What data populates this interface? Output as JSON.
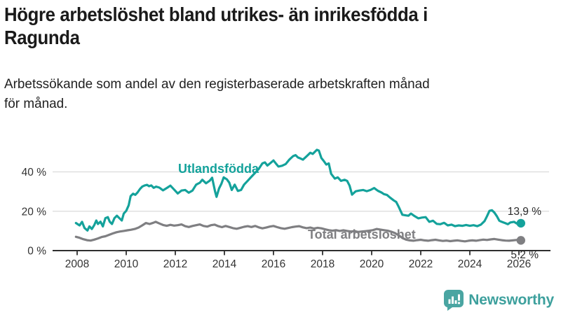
{
  "headline": {
    "lines": [
      "Högre arbetslöshet bland utrikes- än inrikesfödda i",
      "Ragunda"
    ]
  },
  "subtitle": {
    "lines": [
      "Arbetssökande som andel av den registerbaserade arbetskraften månad",
      "för månad."
    ]
  },
  "chart_data": {
    "type": "line",
    "title": "Högre arbetslöshet bland utrikes- än inrikesfödda i Ragunda",
    "subtitle": "Arbetssökande som andel av den registerbaserade arbetskraften månad för månad.",
    "unit": "%",
    "grid": true,
    "x_axis": {
      "tick_years": [
        2008,
        2010,
        2012,
        2014,
        2016,
        2018,
        2020,
        2022,
        2024,
        2026
      ],
      "range": [
        2007.9,
        2026.3
      ]
    },
    "y_axis": {
      "ticks": [
        {
          "value": 0,
          "label": "0 %"
        },
        {
          "value": 20,
          "label": "20 %"
        },
        {
          "value": 40,
          "label": "40 %"
        }
      ],
      "ylim": [
        0,
        52
      ]
    },
    "colors": {
      "axis": "#2f2f2f",
      "grid": "#e0e0e0",
      "tick_text": "#333333"
    },
    "series": [
      {
        "name": "Utlandsfödda",
        "color": "#14a29b",
        "end_label": "13,9 %",
        "end_value": 13.9,
        "points": [
          [
            2007.95,
            14
          ],
          [
            2008.1,
            12.8
          ],
          [
            2008.2,
            14.6
          ],
          [
            2008.3,
            11.5
          ],
          [
            2008.42,
            10.2
          ],
          [
            2008.5,
            12.3
          ],
          [
            2008.6,
            11.0
          ],
          [
            2008.7,
            13.0
          ],
          [
            2008.78,
            15.3
          ],
          [
            2008.85,
            13.5
          ],
          [
            2008.95,
            14.7
          ],
          [
            2009.05,
            12.3
          ],
          [
            2009.15,
            16.5
          ],
          [
            2009.25,
            17.0
          ],
          [
            2009.33,
            14.7
          ],
          [
            2009.42,
            13.5
          ],
          [
            2009.52,
            16.5
          ],
          [
            2009.62,
            17.7
          ],
          [
            2009.72,
            16.5
          ],
          [
            2009.82,
            15.3
          ],
          [
            2009.9,
            18.8
          ],
          [
            2010.0,
            20.2
          ],
          [
            2010.1,
            23.0
          ],
          [
            2010.18,
            27.7
          ],
          [
            2010.28,
            28.9
          ],
          [
            2010.37,
            28.3
          ],
          [
            2010.46,
            29.5
          ],
          [
            2010.56,
            31.3
          ],
          [
            2010.65,
            32.5
          ],
          [
            2010.75,
            33.1
          ],
          [
            2010.85,
            33.4
          ],
          [
            2010.93,
            32.7
          ],
          [
            2011.02,
            33.1
          ],
          [
            2011.12,
            31.9
          ],
          [
            2011.22,
            32.5
          ],
          [
            2011.35,
            32.0
          ],
          [
            2011.5,
            30.6
          ],
          [
            2011.65,
            31.8
          ],
          [
            2011.8,
            33.0
          ],
          [
            2011.95,
            31.0
          ],
          [
            2012.1,
            29.0
          ],
          [
            2012.25,
            30.5
          ],
          [
            2012.4,
            30.8
          ],
          [
            2012.55,
            29.4
          ],
          [
            2012.7,
            30.5
          ],
          [
            2012.85,
            33.5
          ],
          [
            2013.0,
            34.5
          ],
          [
            2013.1,
            36.0
          ],
          [
            2013.25,
            34.2
          ],
          [
            2013.4,
            35.5
          ],
          [
            2013.5,
            37.0
          ],
          [
            2013.62,
            30.0
          ],
          [
            2013.68,
            27.3
          ],
          [
            2013.78,
            31.5
          ],
          [
            2013.88,
            34.0
          ],
          [
            2013.97,
            37.2
          ],
          [
            2014.1,
            36.2
          ],
          [
            2014.2,
            34.5
          ],
          [
            2014.3,
            30.8
          ],
          [
            2014.42,
            33.5
          ],
          [
            2014.55,
            30.3
          ],
          [
            2014.68,
            30.8
          ],
          [
            2014.8,
            33.5
          ],
          [
            2014.95,
            35.5
          ],
          [
            2015.1,
            37.5
          ],
          [
            2015.25,
            39.5
          ],
          [
            2015.4,
            41.5
          ],
          [
            2015.55,
            44.3
          ],
          [
            2015.65,
            44.8
          ],
          [
            2015.75,
            43.2
          ],
          [
            2015.88,
            44.5
          ],
          [
            2016.0,
            45.8
          ],
          [
            2016.1,
            44.2
          ],
          [
            2016.2,
            42.7
          ],
          [
            2016.35,
            43.1
          ],
          [
            2016.5,
            44.0
          ],
          [
            2016.65,
            46.3
          ],
          [
            2016.8,
            48.0
          ],
          [
            2016.9,
            48.5
          ],
          [
            2017.0,
            47.3
          ],
          [
            2017.1,
            46.8
          ],
          [
            2017.2,
            46.2
          ],
          [
            2017.35,
            47.9
          ],
          [
            2017.5,
            49.7
          ],
          [
            2017.6,
            49.1
          ],
          [
            2017.77,
            51.2
          ],
          [
            2017.85,
            50.8
          ],
          [
            2017.95,
            47.0
          ],
          [
            2018.05,
            45.5
          ],
          [
            2018.15,
            43.7
          ],
          [
            2018.25,
            44.3
          ],
          [
            2018.35,
            39.0
          ],
          [
            2018.5,
            36.6
          ],
          [
            2018.62,
            37.2
          ],
          [
            2018.75,
            35.4
          ],
          [
            2018.9,
            36.0
          ],
          [
            2019.0,
            35.4
          ],
          [
            2019.1,
            33.0
          ],
          [
            2019.2,
            28.4
          ],
          [
            2019.35,
            30.1
          ],
          [
            2019.5,
            30.5
          ],
          [
            2019.65,
            30.8
          ],
          [
            2019.8,
            30.2
          ],
          [
            2019.95,
            30.8
          ],
          [
            2020.1,
            31.8
          ],
          [
            2020.25,
            30.4
          ],
          [
            2020.4,
            29.5
          ],
          [
            2020.5,
            28.7
          ],
          [
            2020.62,
            28.3
          ],
          [
            2020.75,
            26.9
          ],
          [
            2020.9,
            25.5
          ],
          [
            2021.0,
            24.7
          ],
          [
            2021.1,
            22.3
          ],
          [
            2021.25,
            18.2
          ],
          [
            2021.4,
            17.9
          ],
          [
            2021.5,
            17.7
          ],
          [
            2021.6,
            18.8
          ],
          [
            2021.75,
            17.5
          ],
          [
            2021.9,
            16.4
          ],
          [
            2022.05,
            16.8
          ],
          [
            2022.2,
            17.0
          ],
          [
            2022.35,
            14.6
          ],
          [
            2022.5,
            15.2
          ],
          [
            2022.65,
            13.6
          ],
          [
            2022.8,
            13.4
          ],
          [
            2022.95,
            14.1
          ],
          [
            2023.1,
            12.8
          ],
          [
            2023.25,
            13.2
          ],
          [
            2023.4,
            12.4
          ],
          [
            2023.55,
            12.8
          ],
          [
            2023.7,
            12.6
          ],
          [
            2023.85,
            13.0
          ],
          [
            2024.0,
            12.6
          ],
          [
            2024.15,
            12.9
          ],
          [
            2024.3,
            12.4
          ],
          [
            2024.45,
            13.2
          ],
          [
            2024.6,
            15.0
          ],
          [
            2024.7,
            17.5
          ],
          [
            2024.8,
            20.2
          ],
          [
            2024.9,
            20.5
          ],
          [
            2025.0,
            19.3
          ],
          [
            2025.1,
            17.5
          ],
          [
            2025.2,
            15.2
          ],
          [
            2025.3,
            14.6
          ],
          [
            2025.45,
            13.9
          ],
          [
            2025.55,
            13.4
          ],
          [
            2025.65,
            14.3
          ],
          [
            2025.8,
            14.6
          ],
          [
            2025.92,
            13.7
          ],
          [
            2026.08,
            13.9
          ]
        ]
      },
      {
        "name": "Total arbetslöshet",
        "color": "#7f7f82",
        "end_label": "5,2 %",
        "end_value": 5.2,
        "points": [
          [
            2007.95,
            7.0
          ],
          [
            2008.1,
            6.5
          ],
          [
            2008.25,
            5.8
          ],
          [
            2008.4,
            5.3
          ],
          [
            2008.55,
            5.1
          ],
          [
            2008.7,
            5.6
          ],
          [
            2008.85,
            6.2
          ],
          [
            2009.0,
            6.9
          ],
          [
            2009.15,
            7.3
          ],
          [
            2009.3,
            8.0
          ],
          [
            2009.45,
            8.7
          ],
          [
            2009.6,
            9.3
          ],
          [
            2009.75,
            9.7
          ],
          [
            2009.9,
            10.0
          ],
          [
            2010.05,
            10.3
          ],
          [
            2010.2,
            10.6
          ],
          [
            2010.35,
            11.0
          ],
          [
            2010.5,
            11.7
          ],
          [
            2010.65,
            12.8
          ],
          [
            2010.8,
            14.0
          ],
          [
            2010.95,
            13.5
          ],
          [
            2011.1,
            14.1
          ],
          [
            2011.2,
            14.6
          ],
          [
            2011.35,
            13.8
          ],
          [
            2011.5,
            13.0
          ],
          [
            2011.65,
            12.6
          ],
          [
            2011.8,
            13.1
          ],
          [
            2011.95,
            12.7
          ],
          [
            2012.1,
            12.9
          ],
          [
            2012.25,
            13.3
          ],
          [
            2012.4,
            12.4
          ],
          [
            2012.55,
            12.0
          ],
          [
            2012.7,
            12.5
          ],
          [
            2012.85,
            12.9
          ],
          [
            2013.0,
            13.3
          ],
          [
            2013.15,
            12.5
          ],
          [
            2013.3,
            12.2
          ],
          [
            2013.45,
            12.9
          ],
          [
            2013.6,
            13.2
          ],
          [
            2013.75,
            12.4
          ],
          [
            2013.9,
            11.9
          ],
          [
            2014.05,
            12.5
          ],
          [
            2014.2,
            12.0
          ],
          [
            2014.35,
            11.4
          ],
          [
            2014.5,
            11.1
          ],
          [
            2014.65,
            11.6
          ],
          [
            2014.8,
            12.1
          ],
          [
            2014.95,
            12.4
          ],
          [
            2015.1,
            12.0
          ],
          [
            2015.25,
            12.5
          ],
          [
            2015.4,
            11.8
          ],
          [
            2015.55,
            11.3
          ],
          [
            2015.7,
            11.7
          ],
          [
            2015.85,
            12.2
          ],
          [
            2016.0,
            12.5
          ],
          [
            2016.15,
            11.9
          ],
          [
            2016.3,
            11.4
          ],
          [
            2016.45,
            11.1
          ],
          [
            2016.6,
            11.5
          ],
          [
            2016.75,
            11.9
          ],
          [
            2016.9,
            12.2
          ],
          [
            2017.05,
            12.4
          ],
          [
            2017.2,
            11.8
          ],
          [
            2017.35,
            11.4
          ],
          [
            2017.5,
            11.7
          ],
          [
            2017.65,
            11.2
          ],
          [
            2017.8,
            11.6
          ],
          [
            2017.95,
            11.3
          ],
          [
            2018.1,
            10.8
          ],
          [
            2018.25,
            10.4
          ],
          [
            2018.4,
            10.1
          ],
          [
            2018.55,
            10.4
          ],
          [
            2018.7,
            10.0
          ],
          [
            2018.85,
            10.3
          ],
          [
            2019.0,
            10.0
          ],
          [
            2019.15,
            9.7
          ],
          [
            2019.3,
            9.9
          ],
          [
            2019.45,
            9.5
          ],
          [
            2019.6,
            9.7
          ],
          [
            2019.75,
            9.9
          ],
          [
            2019.9,
            10.1
          ],
          [
            2020.05,
            10.4
          ],
          [
            2020.2,
            11.0
          ],
          [
            2020.35,
            10.7
          ],
          [
            2020.5,
            10.4
          ],
          [
            2020.65,
            10.1
          ],
          [
            2020.8,
            9.6
          ],
          [
            2020.95,
            8.9
          ],
          [
            2021.1,
            7.8
          ],
          [
            2021.25,
            6.4
          ],
          [
            2021.4,
            5.6
          ],
          [
            2021.55,
            5.2
          ],
          [
            2021.7,
            5.0
          ],
          [
            2021.85,
            5.3
          ],
          [
            2022.0,
            5.5
          ],
          [
            2022.15,
            5.2
          ],
          [
            2022.3,
            5.0
          ],
          [
            2022.45,
            5.3
          ],
          [
            2022.6,
            5.5
          ],
          [
            2022.75,
            5.2
          ],
          [
            2022.9,
            4.9
          ],
          [
            2023.05,
            5.1
          ],
          [
            2023.2,
            4.8
          ],
          [
            2023.35,
            5.0
          ],
          [
            2023.5,
            5.2
          ],
          [
            2023.65,
            4.9
          ],
          [
            2023.8,
            4.7
          ],
          [
            2023.95,
            5.0
          ],
          [
            2024.1,
            5.2
          ],
          [
            2024.25,
            5.0
          ],
          [
            2024.4,
            5.3
          ],
          [
            2024.55,
            5.6
          ],
          [
            2024.7,
            5.4
          ],
          [
            2024.85,
            5.7
          ],
          [
            2025.0,
            5.9
          ],
          [
            2025.15,
            5.6
          ],
          [
            2025.3,
            5.3
          ],
          [
            2025.45,
            5.1
          ],
          [
            2025.6,
            5.0
          ],
          [
            2025.75,
            5.2
          ],
          [
            2025.9,
            5.4
          ],
          [
            2026.08,
            5.2
          ]
        ]
      }
    ]
  },
  "branding": {
    "name": "Newsworthy",
    "color": "#3da09d",
    "icon": "bar-chart-speech-bubble"
  }
}
